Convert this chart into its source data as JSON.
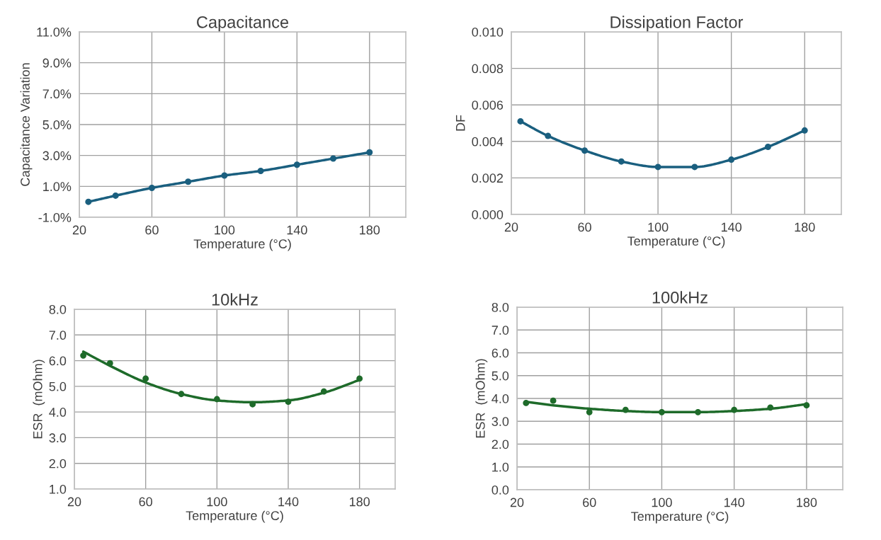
{
  "chart_data": [
    {
      "type": "line",
      "title": "Capacitance",
      "xlabel": "Temperature (°C)",
      "ylabel": "Capacitance Variation",
      "grid": true,
      "marker": "circle",
      "x": [
        25,
        40,
        60,
        80,
        100,
        120,
        140,
        160,
        180
      ],
      "series": [
        {
          "color": "#1a5f7f",
          "values": [
            0.0,
            0.4,
            0.9,
            1.3,
            1.7,
            2.0,
            2.4,
            2.8,
            3.2
          ]
        }
      ],
      "xlim": [
        20,
        200
      ],
      "xticks": [
        20,
        60,
        100,
        140,
        180
      ],
      "ylim": [
        -1,
        11
      ],
      "yticks": [
        {
          "value": -1,
          "label": "-1.0%"
        },
        {
          "value": 1,
          "label": "1.0%"
        },
        {
          "value": 3,
          "label": "3.0%"
        },
        {
          "value": 5,
          "label": "5.0%"
        },
        {
          "value": 7,
          "label": "7.0%"
        },
        {
          "value": 9,
          "label": "9.0%"
        },
        {
          "value": 11,
          "label": "11.0%"
        }
      ]
    },
    {
      "type": "line",
      "title": "Dissipation Factor",
      "xlabel": "Temperature (°C)",
      "ylabel": "DF",
      "grid": true,
      "marker": "circle",
      "x": [
        25,
        40,
        60,
        80,
        100,
        120,
        140,
        160,
        180
      ],
      "series": [
        {
          "color": "#1a5f7f",
          "values": [
            0.0051,
            0.0043,
            0.0035,
            0.0029,
            0.0026,
            0.0026,
            0.003,
            0.0037,
            0.0046
          ]
        }
      ],
      "xlim": [
        20,
        200
      ],
      "xticks": [
        20,
        60,
        100,
        140,
        180
      ],
      "ylim": [
        0,
        0.01
      ],
      "yticks": [
        {
          "value": 0,
          "label": "0.000"
        },
        {
          "value": 0.002,
          "label": "0.002"
        },
        {
          "value": 0.004,
          "label": "0.004"
        },
        {
          "value": 0.006,
          "label": "0.006"
        },
        {
          "value": 0.008,
          "label": "0.008"
        },
        {
          "value": 0.01,
          "label": "0.010"
        }
      ]
    },
    {
      "type": "scatter",
      "title": "10kHz",
      "xlabel": "Temperature (°C)",
      "ylabel": "ESR  (mOhm)",
      "grid": true,
      "marker": "circle",
      "x": [
        25,
        40,
        60,
        80,
        100,
        120,
        140,
        160,
        180
      ],
      "series": [
        {
          "color": "#1e6b2a",
          "values": [
            6.2,
            5.9,
            5.3,
            4.7,
            4.5,
            4.3,
            4.4,
            4.8,
            5.3
          ]
        },
        {
          "type": "line",
          "marker": "none",
          "color": "#1e6b2a",
          "x": [
            25,
            40,
            60,
            80,
            100,
            120,
            140,
            160,
            180
          ],
          "values": [
            6.35,
            5.8,
            5.15,
            4.7,
            4.45,
            4.38,
            4.45,
            4.75,
            5.25
          ]
        }
      ],
      "xlim": [
        20,
        200
      ],
      "xticks": [
        20,
        60,
        100,
        140,
        180
      ],
      "ylim": [
        1,
        8
      ],
      "yticks": [
        {
          "value": 1,
          "label": "1.0"
        },
        {
          "value": 2,
          "label": "2.0"
        },
        {
          "value": 3,
          "label": "3.0"
        },
        {
          "value": 4,
          "label": "4.0"
        },
        {
          "value": 5,
          "label": "5.0"
        },
        {
          "value": 6,
          "label": "6.0"
        },
        {
          "value": 7,
          "label": "7.0"
        },
        {
          "value": 8,
          "label": "8.0"
        }
      ]
    },
    {
      "type": "scatter",
      "title": "100kHz",
      "xlabel": "Temperature (°C)",
      "ylabel": "ESR  (mOhm)",
      "grid": true,
      "marker": "circle",
      "x": [
        25,
        40,
        60,
        80,
        100,
        120,
        140,
        160,
        180
      ],
      "series": [
        {
          "color": "#1e6b2a",
          "values": [
            3.8,
            3.9,
            3.4,
            3.5,
            3.4,
            3.4,
            3.5,
            3.6,
            3.7
          ]
        },
        {
          "type": "line",
          "marker": "none",
          "color": "#1e6b2a",
          "x": [
            25,
            40,
            60,
            80,
            100,
            120,
            140,
            160,
            180
          ],
          "values": [
            3.85,
            3.7,
            3.55,
            3.45,
            3.4,
            3.4,
            3.45,
            3.55,
            3.75
          ]
        }
      ],
      "xlim": [
        20,
        200
      ],
      "xticks": [
        20,
        60,
        100,
        140,
        180
      ],
      "ylim": [
        0,
        8
      ],
      "yticks": [
        {
          "value": 0,
          "label": "0.0"
        },
        {
          "value": 1,
          "label": "1.0"
        },
        {
          "value": 2,
          "label": "2.0"
        },
        {
          "value": 3,
          "label": "3.0"
        },
        {
          "value": 4,
          "label": "4.0"
        },
        {
          "value": 5,
          "label": "5.0"
        },
        {
          "value": 6,
          "label": "6.0"
        },
        {
          "value": 7,
          "label": "7.0"
        },
        {
          "value": 8,
          "label": "8.0"
        }
      ]
    }
  ]
}
